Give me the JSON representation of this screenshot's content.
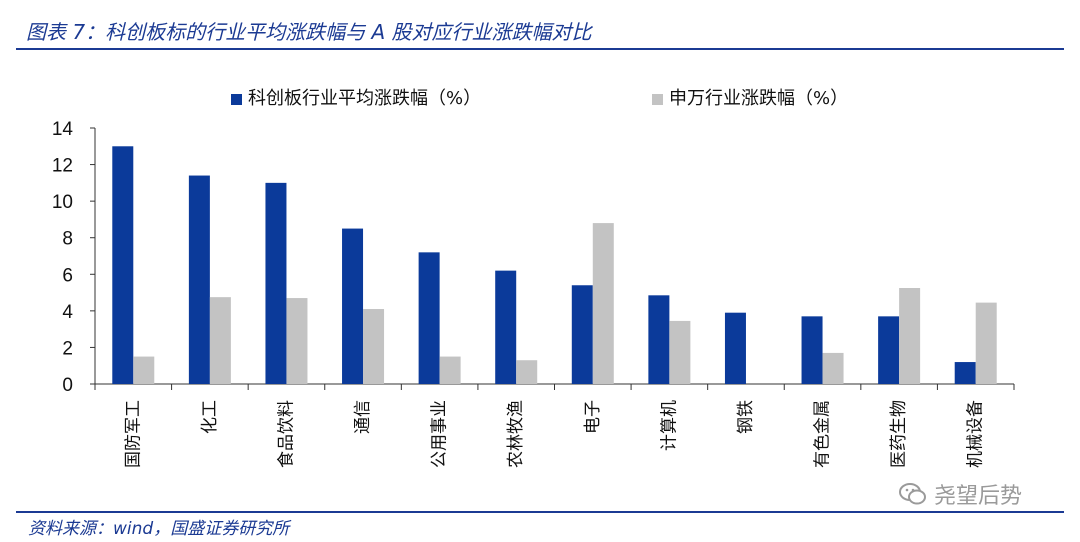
{
  "title": "图表 7：科创板标的行业平均涨跌幅与 A 股对应行业涨跌幅对比",
  "source": "资料来源：wind，国盛证券研究所",
  "watermark": "尧望后势",
  "colors": {
    "accent": "#1b3a93",
    "series1": "#0b3a9a",
    "series2": "#c3c3c3"
  },
  "chart_data": {
    "type": "bar",
    "categories": [
      "国防军工",
      "化工",
      "食品饮料",
      "通信",
      "公用事业",
      "农林牧渔",
      "电子",
      "计算机",
      "钢铁",
      "有色金属",
      "医药生物",
      "机械设备"
    ],
    "series": [
      {
        "name": "科创板行业平均涨跌幅（%）",
        "values": [
          13.0,
          11.4,
          11.0,
          8.5,
          7.2,
          6.2,
          5.4,
          4.85,
          3.9,
          3.7,
          3.7,
          1.2
        ]
      },
      {
        "name": "申万行业涨跌幅（%）",
        "values": [
          1.5,
          4.75,
          4.7,
          4.1,
          1.5,
          1.3,
          8.8,
          3.45,
          0.0,
          1.7,
          5.25,
          4.45
        ]
      }
    ],
    "ylim": [
      0,
      14
    ],
    "yticks": [
      0,
      2,
      4,
      6,
      8,
      10,
      12,
      14
    ],
    "legend_position": "top",
    "grid": false
  }
}
